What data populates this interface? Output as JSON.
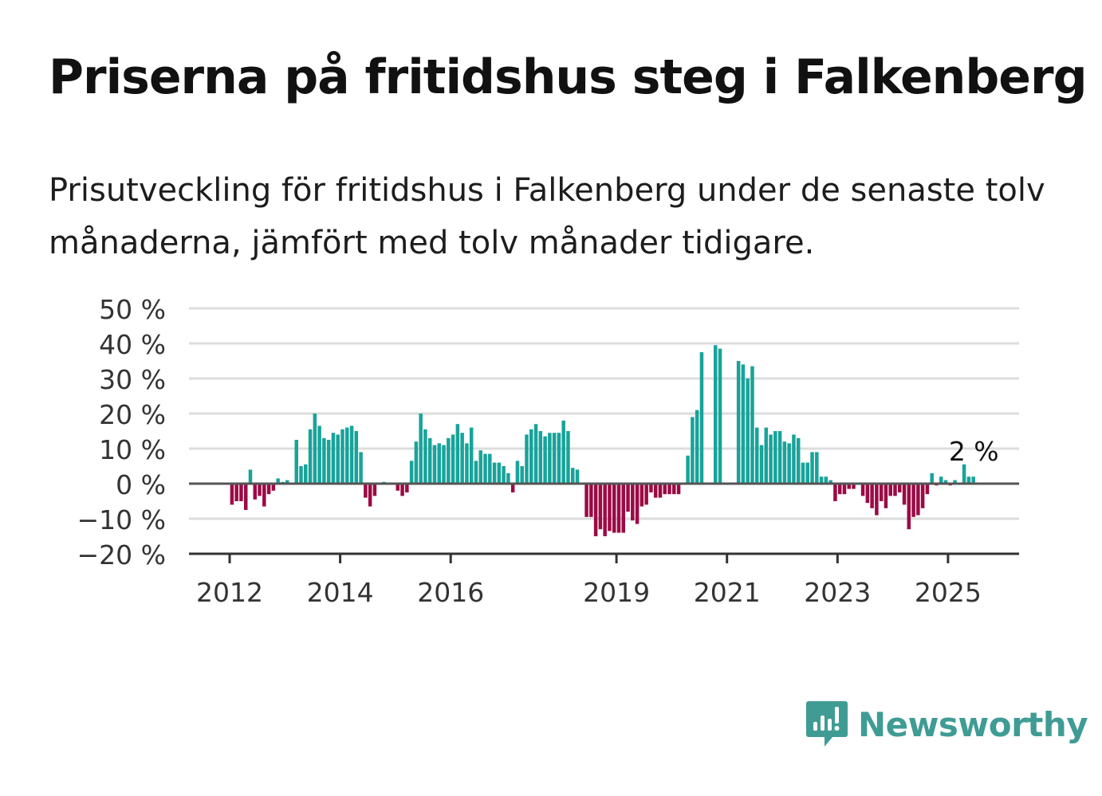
{
  "title": "Priserna på fritidshus steg i Falkenberg",
  "subtitle": "Prisutveckling för fritidshus i Falkenberg under de senaste tolv månaderna, jämfört med tolv månader tidigare.",
  "brand": {
    "name": "Newsworthy",
    "icon": "newsworthy-logo-icon",
    "color": "#3f9c94"
  },
  "colors": {
    "positive": "#18a39a",
    "negative": "#9b0a45",
    "grid": "#dddddd",
    "axis": "#555555"
  },
  "chart_data": {
    "type": "bar",
    "x_start": "2012-01",
    "x_step": "month",
    "ylim": [
      -20,
      50
    ],
    "yticks": [
      50,
      40,
      30,
      20,
      10,
      0,
      -10,
      -20
    ],
    "ytick_labels": [
      "50 %",
      "40 %",
      "30 %",
      "20 %",
      "10 %",
      "0 %",
      "−10 %",
      "−20 %"
    ],
    "xticks": [
      "2012-01",
      "2014-01",
      "2016-01",
      "2019-01",
      "2021-01",
      "2023-01",
      "2025-01"
    ],
    "xtick_labels": [
      "2012",
      "2014",
      "2016",
      "2019",
      "2021",
      "2023",
      "2025"
    ],
    "last_value_label": "2 %",
    "grid": true,
    "values": [
      -6,
      -5,
      -5,
      -7.5,
      4,
      -4.5,
      -3.5,
      -6.5,
      -3,
      -2,
      1.5,
      0.5,
      1,
      0,
      12.5,
      5,
      5.5,
      15.5,
      20,
      16.5,
      13,
      12.5,
      14.5,
      14,
      15.5,
      16,
      16.5,
      15,
      9,
      -4,
      -6.5,
      -3.5,
      0,
      0.5,
      0,
      0,
      -2,
      -3.5,
      -2.5,
      6.5,
      12,
      20,
      15.5,
      13,
      11,
      11.5,
      11,
      13,
      14,
      17,
      14.5,
      11.5,
      16,
      6.5,
      9.5,
      8.5,
      8.5,
      6,
      6,
      5,
      3,
      -2.5,
      6.5,
      5,
      14,
      15.5,
      17,
      15,
      13.5,
      14.5,
      14.5,
      14.5,
      18,
      15,
      4.5,
      4,
      0,
      -9.5,
      -9.5,
      -15,
      -13,
      -15,
      -13.5,
      -14,
      -14,
      -14,
      -8,
      -10.5,
      -11.5,
      -6.5,
      -6,
      -2.5,
      -4,
      -4,
      -3,
      -3,
      -3,
      -3,
      0,
      8,
      19,
      21,
      37.5,
      0,
      0,
      39.5,
      38.5,
      0,
      0,
      0,
      35,
      34,
      30,
      33.5,
      16,
      11,
      16,
      14,
      15,
      15,
      12,
      11.5,
      14,
      13,
      6,
      6,
      9,
      9,
      2,
      2,
      1,
      -5,
      -3,
      -3,
      -1.5,
      -1.5,
      0,
      -3.5,
      -5.5,
      -7,
      -9,
      -5,
      -7,
      -3.5,
      -3.5,
      -2.5,
      -6,
      -13,
      -9.5,
      -9,
      -7,
      -3,
      3,
      -0.5,
      2,
      1,
      -0.5,
      1,
      0,
      5.5,
      2,
      2
    ]
  }
}
